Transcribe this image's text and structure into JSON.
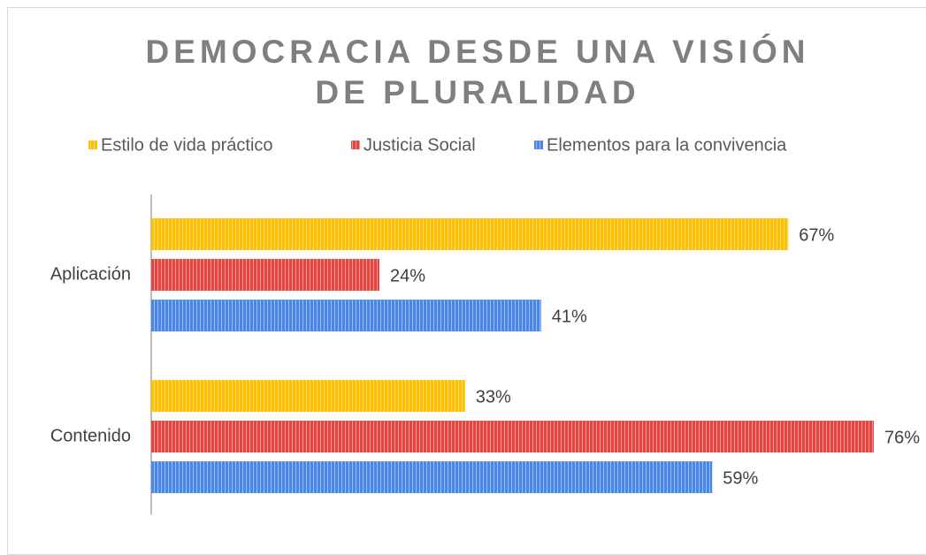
{
  "chart_data": {
    "type": "bar",
    "orientation": "horizontal",
    "title": "DEMOCRACIA DESDE UNA VISIÓN DE PLURALIDAD",
    "categories": [
      "Aplicación",
      "Contenido"
    ],
    "series": [
      {
        "name": "Estilo de vida práctico",
        "color": "#FFC000",
        "values": [
          67,
          33
        ],
        "value_labels": [
          "67%",
          "33%"
        ]
      },
      {
        "name": "Justicia Social",
        "color": "#E5443F",
        "values": [
          24,
          76
        ],
        "value_labels": [
          "24%",
          "76%"
        ]
      },
      {
        "name": "Elementos para la convivencia",
        "color": "#4A86E8",
        "values": [
          41,
          59
        ],
        "value_labels": [
          "41%",
          "59%"
        ]
      }
    ],
    "xlim": [
      0,
      80
    ],
    "legend": "top"
  }
}
